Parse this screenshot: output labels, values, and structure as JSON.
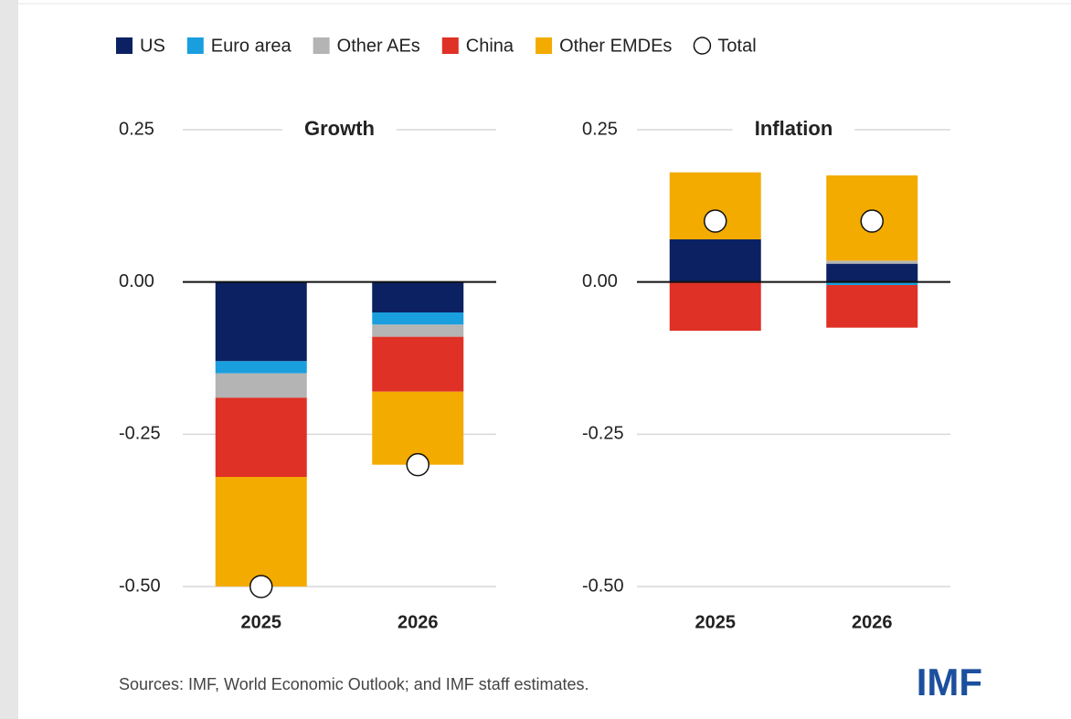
{
  "legend": {
    "series": [
      {
        "name": "US",
        "color": "#0b2161"
      },
      {
        "name": "Euro area",
        "color": "#1a9fde"
      },
      {
        "name": "Other AEs",
        "color": "#b4b4b4"
      },
      {
        "name": "China",
        "color": "#df3126"
      },
      {
        "name": "Other EMDEs",
        "color": "#f3ab00"
      }
    ],
    "total": "Total"
  },
  "chart_data": [
    {
      "type": "bar",
      "stacked": true,
      "title": "Growth",
      "categories": [
        "2025",
        "2026"
      ],
      "series": [
        {
          "values": [
            -0.13,
            -0.05
          ]
        },
        {
          "values": [
            -0.02,
            -0.02
          ]
        },
        {
          "values": [
            -0.04,
            -0.02
          ]
        },
        {
          "values": [
            -0.13,
            -0.09
          ]
        },
        {
          "values": [
            -0.18,
            -0.12
          ]
        }
      ],
      "total": {
        "values": [
          -0.5,
          -0.3
        ]
      },
      "ylim": [
        -0.5,
        0.25
      ],
      "yticks": [
        0.25,
        {
          "value": 0,
          "label": "0.00"
        },
        -0.25,
        {
          "value": -0.5,
          "label": "-0.50"
        }
      ],
      "grid": true
    },
    {
      "type": "bar",
      "stacked": true,
      "title": "Inflation",
      "categories": [
        "2025",
        "2026"
      ],
      "series": [
        {
          "values": [
            0.07,
            0.03
          ]
        },
        {
          "values": [
            0,
            -0.005
          ]
        },
        {
          "values": [
            0,
            0.005
          ]
        },
        {
          "values": [
            -0.08,
            -0.07
          ]
        },
        {
          "values": [
            0.11,
            0.14
          ]
        }
      ],
      "total": {
        "values": [
          0.1,
          0.1
        ]
      },
      "ylim": [
        -0.5,
        0.25
      ],
      "yticks": [
        0.25,
        {
          "value": 0,
          "label": "0.00"
        },
        -0.25,
        {
          "value": -0.5,
          "label": "-0.50"
        }
      ],
      "grid": true
    }
  ],
  "source": "Sources: IMF, World Economic Outlook; and IMF staff estimates.",
  "logo": "IMF"
}
